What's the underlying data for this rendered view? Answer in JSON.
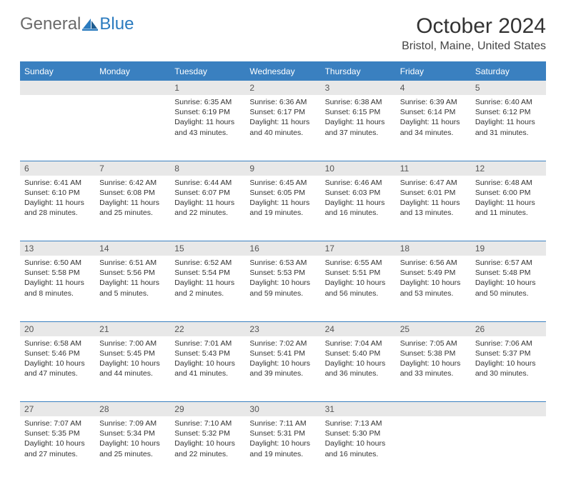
{
  "brand": {
    "part1": "General",
    "part2": "Blue"
  },
  "title": "October 2024",
  "subtitle": "Bristol, Maine, United States",
  "dayHeaders": [
    "Sunday",
    "Monday",
    "Tuesday",
    "Wednesday",
    "Thursday",
    "Friday",
    "Saturday"
  ],
  "colors": {
    "headerBg": "#3a80c0",
    "headerText": "#ffffff",
    "dayNumBg": "#e8e8e8",
    "border": "#3a80c0",
    "logoGray": "#6a6a6a",
    "logoBlue": "#2b7bbf"
  },
  "weeks": [
    [
      null,
      null,
      {
        "n": "1",
        "sr": "6:35 AM",
        "ss": "6:19 PM",
        "dl": "11 hours and 43 minutes."
      },
      {
        "n": "2",
        "sr": "6:36 AM",
        "ss": "6:17 PM",
        "dl": "11 hours and 40 minutes."
      },
      {
        "n": "3",
        "sr": "6:38 AM",
        "ss": "6:15 PM",
        "dl": "11 hours and 37 minutes."
      },
      {
        "n": "4",
        "sr": "6:39 AM",
        "ss": "6:14 PM",
        "dl": "11 hours and 34 minutes."
      },
      {
        "n": "5",
        "sr": "6:40 AM",
        "ss": "6:12 PM",
        "dl": "11 hours and 31 minutes."
      }
    ],
    [
      {
        "n": "6",
        "sr": "6:41 AM",
        "ss": "6:10 PM",
        "dl": "11 hours and 28 minutes."
      },
      {
        "n": "7",
        "sr": "6:42 AM",
        "ss": "6:08 PM",
        "dl": "11 hours and 25 minutes."
      },
      {
        "n": "8",
        "sr": "6:44 AM",
        "ss": "6:07 PM",
        "dl": "11 hours and 22 minutes."
      },
      {
        "n": "9",
        "sr": "6:45 AM",
        "ss": "6:05 PM",
        "dl": "11 hours and 19 minutes."
      },
      {
        "n": "10",
        "sr": "6:46 AM",
        "ss": "6:03 PM",
        "dl": "11 hours and 16 minutes."
      },
      {
        "n": "11",
        "sr": "6:47 AM",
        "ss": "6:01 PM",
        "dl": "11 hours and 13 minutes."
      },
      {
        "n": "12",
        "sr": "6:48 AM",
        "ss": "6:00 PM",
        "dl": "11 hours and 11 minutes."
      }
    ],
    [
      {
        "n": "13",
        "sr": "6:50 AM",
        "ss": "5:58 PM",
        "dl": "11 hours and 8 minutes."
      },
      {
        "n": "14",
        "sr": "6:51 AM",
        "ss": "5:56 PM",
        "dl": "11 hours and 5 minutes."
      },
      {
        "n": "15",
        "sr": "6:52 AM",
        "ss": "5:54 PM",
        "dl": "11 hours and 2 minutes."
      },
      {
        "n": "16",
        "sr": "6:53 AM",
        "ss": "5:53 PM",
        "dl": "10 hours and 59 minutes."
      },
      {
        "n": "17",
        "sr": "6:55 AM",
        "ss": "5:51 PM",
        "dl": "10 hours and 56 minutes."
      },
      {
        "n": "18",
        "sr": "6:56 AM",
        "ss": "5:49 PM",
        "dl": "10 hours and 53 minutes."
      },
      {
        "n": "19",
        "sr": "6:57 AM",
        "ss": "5:48 PM",
        "dl": "10 hours and 50 minutes."
      }
    ],
    [
      {
        "n": "20",
        "sr": "6:58 AM",
        "ss": "5:46 PM",
        "dl": "10 hours and 47 minutes."
      },
      {
        "n": "21",
        "sr": "7:00 AM",
        "ss": "5:45 PM",
        "dl": "10 hours and 44 minutes."
      },
      {
        "n": "22",
        "sr": "7:01 AM",
        "ss": "5:43 PM",
        "dl": "10 hours and 41 minutes."
      },
      {
        "n": "23",
        "sr": "7:02 AM",
        "ss": "5:41 PM",
        "dl": "10 hours and 39 minutes."
      },
      {
        "n": "24",
        "sr": "7:04 AM",
        "ss": "5:40 PM",
        "dl": "10 hours and 36 minutes."
      },
      {
        "n": "25",
        "sr": "7:05 AM",
        "ss": "5:38 PM",
        "dl": "10 hours and 33 minutes."
      },
      {
        "n": "26",
        "sr": "7:06 AM",
        "ss": "5:37 PM",
        "dl": "10 hours and 30 minutes."
      }
    ],
    [
      {
        "n": "27",
        "sr": "7:07 AM",
        "ss": "5:35 PM",
        "dl": "10 hours and 27 minutes."
      },
      {
        "n": "28",
        "sr": "7:09 AM",
        "ss": "5:34 PM",
        "dl": "10 hours and 25 minutes."
      },
      {
        "n": "29",
        "sr": "7:10 AM",
        "ss": "5:32 PM",
        "dl": "10 hours and 22 minutes."
      },
      {
        "n": "30",
        "sr": "7:11 AM",
        "ss": "5:31 PM",
        "dl": "10 hours and 19 minutes."
      },
      {
        "n": "31",
        "sr": "7:13 AM",
        "ss": "5:30 PM",
        "dl": "10 hours and 16 minutes."
      },
      null,
      null
    ]
  ],
  "labels": {
    "sunrise": "Sunrise:",
    "sunset": "Sunset:",
    "daylight": "Daylight:"
  }
}
